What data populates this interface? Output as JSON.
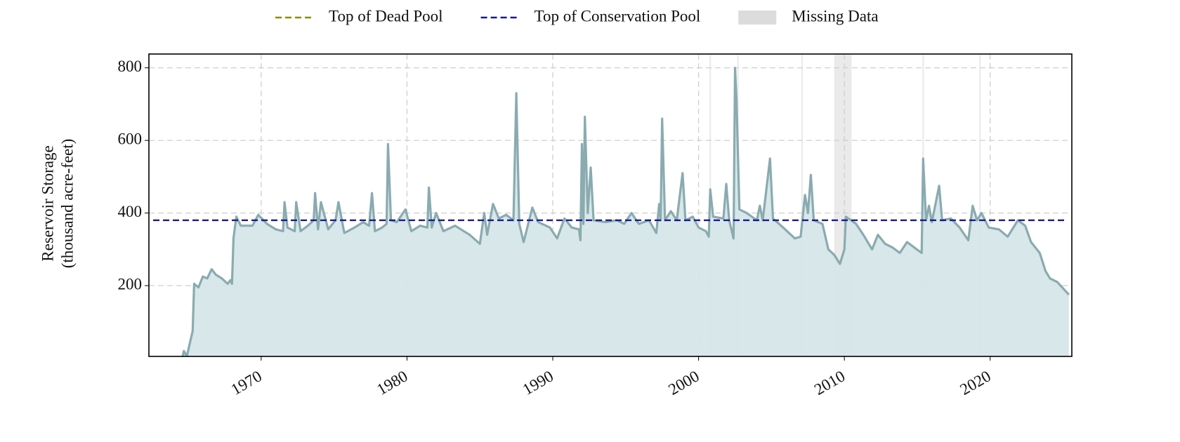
{
  "chart_data": {
    "type": "area",
    "y_label": [
      "Reservoir Storage",
      "(thousand acre-feet)"
    ],
    "x": [
      1962.5,
      1964.6,
      1964.7,
      1964.9,
      1965.1,
      1965.3,
      1965.4,
      1965.7,
      1966.0,
      1966.3,
      1966.6,
      1966.9,
      1967.3,
      1967.7,
      1967.9,
      1968.0,
      1968.1,
      1968.3,
      1968.6,
      1969.4,
      1969.8,
      1970.4,
      1971.0,
      1971.5,
      1971.6,
      1971.8,
      1972.3,
      1972.4,
      1972.7,
      1973.2,
      1973.6,
      1973.7,
      1973.9,
      1974.1,
      1974.6,
      1975.1,
      1975.3,
      1975.7,
      1976.4,
      1977.0,
      1977.4,
      1977.6,
      1977.8,
      1978.3,
      1978.6,
      1978.7,
      1978.9,
      1979.3,
      1979.9,
      1980.3,
      1980.9,
      1981.4,
      1981.5,
      1981.7,
      1982.0,
      1982.5,
      1983.3,
      1984.3,
      1985.0,
      1985.3,
      1985.5,
      1985.9,
      1986.3,
      1986.8,
      1987.3,
      1987.5,
      1987.7,
      1988.0,
      1988.6,
      1989.0,
      1989.8,
      1990.3,
      1990.8,
      1991.3,
      1991.8,
      1991.9,
      1992.0,
      1992.1,
      1992.2,
      1992.4,
      1992.6,
      1992.8,
      1993.6,
      1994.4,
      1994.9,
      1995.4,
      1995.9,
      1996.6,
      1997.1,
      1997.3,
      1997.4,
      1997.5,
      1997.7,
      1998.1,
      1998.5,
      1998.9,
      1999.1,
      1999.6,
      2000.0,
      2000.5,
      2000.7,
      2000.8,
      2001.0,
      2001.7,
      2001.9,
      2002.1,
      2002.4,
      2002.5,
      2002.6,
      2002.8,
      2003.3,
      2004.0,
      2004.2,
      2004.4,
      2004.9,
      2005.1,
      2005.8,
      2006.6,
      2007.0,
      2007.3,
      2007.5,
      2007.7,
      2007.9,
      2008.5,
      2008.9,
      2009.3,
      2009.7,
      2010.0,
      2010.1,
      2010.8,
      2011.3,
      2011.9,
      2012.3,
      2012.8,
      2013.3,
      2013.8,
      2014.3,
      2014.8,
      2015.3,
      2015.4,
      2015.6,
      2015.8,
      2016.0,
      2016.5,
      2016.7,
      2017.3,
      2017.9,
      2018.5,
      2018.8,
      2019.1,
      2019.4,
      2019.9,
      2020.6,
      2021.2,
      2021.9,
      2022.4,
      2022.8,
      2023.4,
      2023.8,
      2024.1,
      2024.6,
      2025.4
    ],
    "values": [
      0,
      2,
      20,
      5,
      40,
      75,
      205,
      195,
      225,
      220,
      245,
      230,
      220,
      205,
      215,
      205,
      330,
      390,
      365,
      365,
      395,
      370,
      355,
      350,
      430,
      360,
      350,
      430,
      350,
      365,
      380,
      455,
      355,
      430,
      355,
      380,
      430,
      345,
      360,
      375,
      365,
      455,
      350,
      360,
      370,
      590,
      380,
      375,
      410,
      350,
      365,
      360,
      470,
      360,
      400,
      350,
      365,
      340,
      315,
      400,
      340,
      425,
      385,
      395,
      380,
      730,
      370,
      320,
      415,
      375,
      360,
      330,
      385,
      360,
      355,
      325,
      590,
      370,
      665,
      400,
      525,
      380,
      375,
      380,
      370,
      400,
      370,
      380,
      345,
      425,
      380,
      660,
      380,
      405,
      380,
      510,
      380,
      390,
      360,
      350,
      335,
      465,
      390,
      385,
      480,
      380,
      330,
      800,
      710,
      410,
      400,
      380,
      420,
      380,
      550,
      385,
      360,
      330,
      335,
      450,
      400,
      505,
      380,
      370,
      300,
      285,
      260,
      300,
      390,
      370,
      340,
      300,
      340,
      315,
      305,
      290,
      320,
      305,
      290,
      550,
      380,
      420,
      375,
      475,
      380,
      385,
      360,
      325,
      420,
      380,
      400,
      360,
      355,
      335,
      380,
      365,
      320,
      290,
      240,
      220,
      210,
      175
    ],
    "color": "#8aabb0",
    "fill_color": "#d6e6e8",
    "reference_lines": [
      {
        "name": "Top of Dead Pool",
        "value": 0,
        "color": "#8b8b00"
      },
      {
        "name": "Top of Conservation Pool",
        "value": 380,
        "color": "#1a1a8c"
      }
    ],
    "missing_data": {
      "name": "Missing Data",
      "color": "#dcdcdc",
      "ranges": [
        [
          2000.75,
          2000.85
        ],
        [
          2002.65,
          2002.75
        ],
        [
          2007.05,
          2007.15
        ],
        [
          2009.3,
          2010.5
        ],
        [
          2015.35,
          2015.45
        ],
        [
          2019.25,
          2019.35
        ]
      ]
    },
    "xlim": [
      1962.3,
      2025.6
    ],
    "ylim": [
      5,
      838
    ],
    "xticks": [
      1970,
      1980,
      1990,
      2000,
      2010,
      2020
    ],
    "yticks": [
      200,
      400,
      600,
      800
    ],
    "grid": true,
    "legend": "top"
  }
}
